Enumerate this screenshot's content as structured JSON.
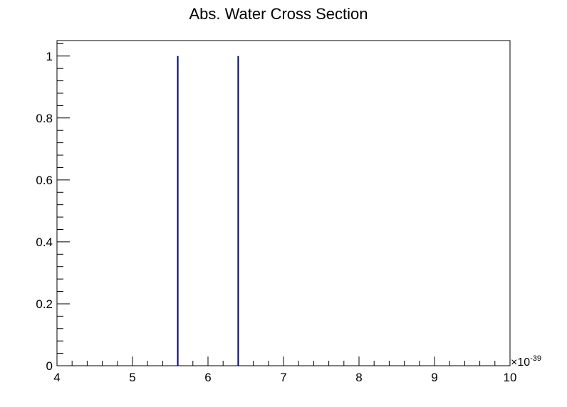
{
  "chart_data": {
    "type": "bar",
    "title": "Abs. Water Cross Section",
    "xlabel": "",
    "ylabel": "",
    "x_multiplier_label": "×10",
    "x_multiplier_exponent": "-39",
    "xlim": [
      4,
      10
    ],
    "ylim": [
      0,
      1.05
    ],
    "x_major_ticks": [
      4,
      5,
      6,
      7,
      8,
      9,
      10
    ],
    "x_tick_labels": [
      "4",
      "5",
      "6",
      "7",
      "8",
      "9",
      "10"
    ],
    "y_major_ticks": [
      0,
      0.2,
      0.4,
      0.6,
      0.8,
      1
    ],
    "y_tick_labels": [
      "0",
      "0.2",
      "0.4",
      "0.6",
      "0.8",
      "1"
    ],
    "series": [
      {
        "x": [
          5.6,
          6.4
        ],
        "values": [
          1,
          1
        ],
        "color": "#000080"
      }
    ],
    "grid": false,
    "legend": "none"
  }
}
